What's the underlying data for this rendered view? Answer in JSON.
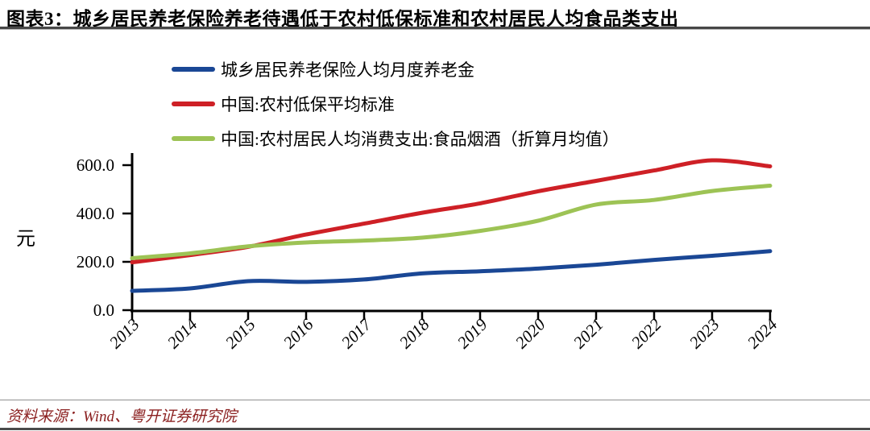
{
  "header": {
    "title": "图表3：城乡居民养老保险养老待遇低于农村低保标准和农村居民人均食品类支出"
  },
  "footer": {
    "source": "资料来源：Wind、粤开证券研究院"
  },
  "colors": {
    "pension_blue": "#1A4795",
    "dibao_red": "#CE2026",
    "food_green": "#9DC355",
    "axis_black": "#000000",
    "title_rule_gray": "#474747",
    "footer_maroon": "#8B2020"
  },
  "chart_data": {
    "type": "line",
    "title": "",
    "xlabel": "",
    "ylabel": "元",
    "unit": "元",
    "x": [
      2013,
      2014,
      2015,
      2016,
      2017,
      2018,
      2019,
      2020,
      2021,
      2022,
      2023,
      2024
    ],
    "x_tick_labels": [
      "2013",
      "2014",
      "2015",
      "2016",
      "2017",
      "2018",
      "2019",
      "2020",
      "2021",
      "2022",
      "2023",
      "2024"
    ],
    "ylim": [
      0,
      650
    ],
    "yticks": [
      0,
      200,
      400,
      600
    ],
    "ytick_labels": [
      "0.0",
      "200.0",
      "400.0",
      "600.0"
    ],
    "grid": false,
    "legend_position": "top-left",
    "series": [
      {
        "name": "城乡居民养老保险人均月度养老金",
        "color": "#1A4795",
        "values": [
          80,
          90,
          120,
          117,
          127,
          152,
          161,
          172,
          188,
          208,
          225,
          244
        ]
      },
      {
        "name": "中国:农村低保平均标准",
        "color": "#CE2026",
        "values": [
          198,
          228,
          262,
          313,
          358,
          403,
          442,
          492,
          535,
          578,
          620,
          595
        ]
      },
      {
        "name": "中国:农村居民人均消费支出:食品烟酒（折算月均值）",
        "color": "#9DC355",
        "values": [
          215,
          235,
          264,
          280,
          288,
          300,
          328,
          370,
          437,
          456,
          493,
          515
        ]
      }
    ]
  }
}
